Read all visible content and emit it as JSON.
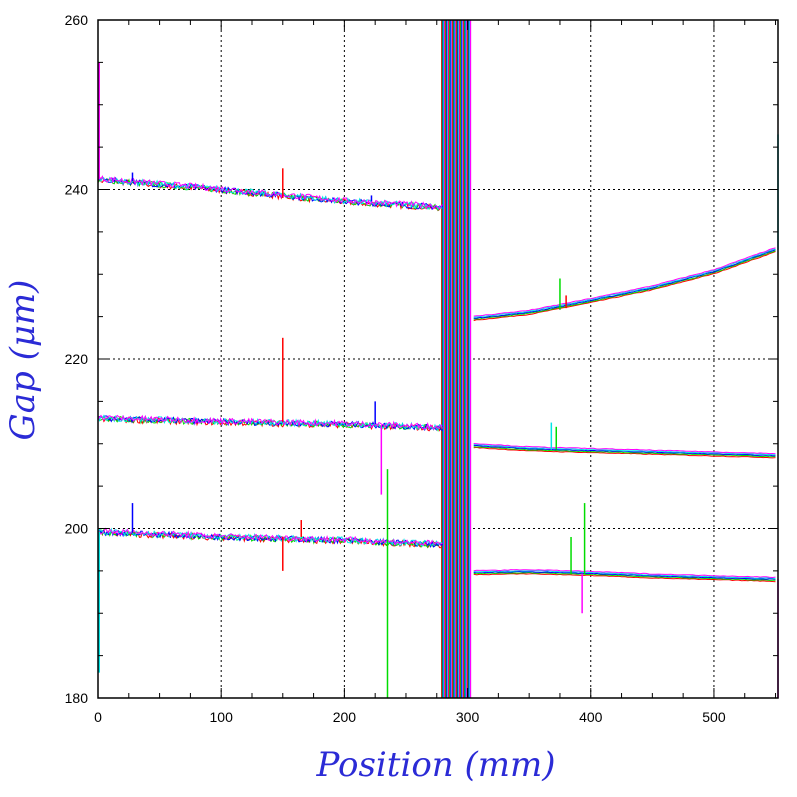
{
  "chart_data": {
    "type": "line",
    "title": "",
    "xlabel": "Position (mm)",
    "ylabel": "Gap (μm)",
    "xlim": [
      0,
      552
    ],
    "ylim": [
      180,
      260
    ],
    "x_ticks": [
      0,
      100,
      200,
      300,
      400,
      500
    ],
    "y_ticks": [
      180,
      200,
      220,
      240,
      260
    ],
    "grid": true,
    "legend": "none",
    "colors": [
      "#ff0000",
      "#00dd00",
      "#0000ff",
      "#00e5e5",
      "#ff00ff"
    ],
    "gap_region": {
      "x_start": 279,
      "x_end": 303
    },
    "series": [
      {
        "segments": [
          [
            [
              0,
              241.2
            ],
            [
              100,
              240.0
            ],
            [
              200,
              238.6
            ],
            [
              280,
              237.9
            ]
          ],
          [
            [
              305,
              224.8
            ],
            [
              350,
              225.5
            ],
            [
              400,
              226.9
            ],
            [
              450,
              228.4
            ],
            [
              500,
              230.3
            ],
            [
              550,
              232.9
            ]
          ]
        ]
      },
      {
        "segments": [
          [
            [
              0,
              213.0
            ],
            [
              100,
              212.6
            ],
            [
              200,
              212.3
            ],
            [
              280,
              211.9
            ]
          ],
          [
            [
              305,
              209.8
            ],
            [
              350,
              209.4
            ],
            [
              400,
              209.2
            ],
            [
              450,
              209.0
            ],
            [
              500,
              208.8
            ],
            [
              550,
              208.6
            ]
          ]
        ]
      },
      {
        "segments": [
          [
            [
              0,
              199.6
            ],
            [
              100,
              199.0
            ],
            [
              200,
              198.6
            ],
            [
              280,
              198.1
            ]
          ],
          [
            [
              305,
              194.8
            ],
            [
              350,
              194.9
            ],
            [
              400,
              194.7
            ],
            [
              450,
              194.4
            ],
            [
              500,
              194.2
            ],
            [
              550,
              194.0
            ]
          ]
        ]
      }
    ],
    "spikes": [
      {
        "x": 28,
        "y1": 241.0,
        "y2": 242.0,
        "color": "#0000ff"
      },
      {
        "x": 150,
        "y1": 239.0,
        "y2": 242.5,
        "color": "#ff0000"
      },
      {
        "x": 222,
        "y1": 238.6,
        "y2": 239.3,
        "color": "#0000ff"
      },
      {
        "x": 150,
        "y1": 212.6,
        "y2": 222.5,
        "color": "#ff0000"
      },
      {
        "x": 225,
        "y1": 212.3,
        "y2": 215.0,
        "color": "#0000ff"
      },
      {
        "x": 230,
        "y1": 212.2,
        "y2": 204.0,
        "color": "#ff00ff"
      },
      {
        "x": 235,
        "y1": 207.0,
        "y2": 180.0,
        "color": "#00dd00"
      },
      {
        "x": 28,
        "y1": 199.5,
        "y2": 203.0,
        "color": "#0000ff"
      },
      {
        "x": 150,
        "y1": 199.0,
        "y2": 195.0,
        "color": "#ff0000"
      },
      {
        "x": 165,
        "y1": 199.0,
        "y2": 201.0,
        "color": "#ff0000"
      },
      {
        "x": 375,
        "y1": 225.8,
        "y2": 229.5,
        "color": "#00dd00"
      },
      {
        "x": 380,
        "y1": 226.0,
        "y2": 227.5,
        "color": "#ff0000"
      },
      {
        "x": 368,
        "y1": 209.3,
        "y2": 212.5,
        "color": "#00e5e5"
      },
      {
        "x": 372,
        "y1": 209.3,
        "y2": 212.0,
        "color": "#00dd00"
      },
      {
        "x": 384,
        "y1": 194.6,
        "y2": 199.0,
        "color": "#00dd00"
      },
      {
        "x": 395,
        "y1": 194.6,
        "y2": 203.0,
        "color": "#00dd00"
      },
      {
        "x": 393,
        "y1": 194.7,
        "y2": 190.0,
        "color": "#ff00ff"
      },
      {
        "x": 552,
        "y1": 232.9,
        "y2": 246.5,
        "color": "#00e5e5"
      },
      {
        "x": 552,
        "y1": 194.0,
        "y2": 180.0,
        "color": "#ff00ff"
      },
      {
        "x": 1,
        "y1": 241.2,
        "y2": 255.0,
        "color": "#ff00ff"
      },
      {
        "x": 1,
        "y1": 199.6,
        "y2": 183.0,
        "color": "#00e5e5"
      }
    ]
  }
}
